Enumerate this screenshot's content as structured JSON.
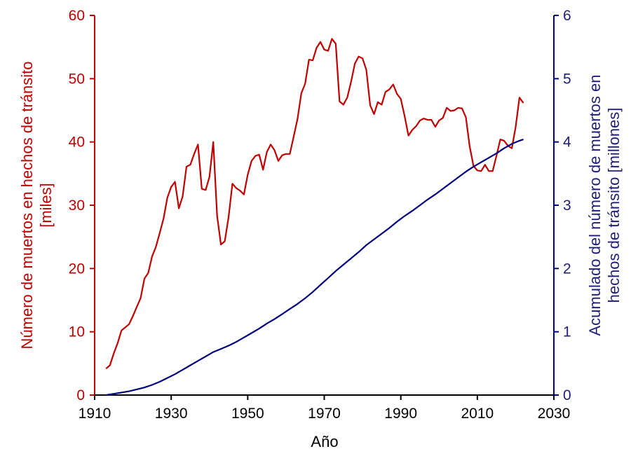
{
  "chart_data": {
    "type": "line",
    "title": "",
    "xlabel": "Año",
    "ylabel_left": [
      "Número de muertos en hechos de tránsito",
      "[miles]"
    ],
    "ylabel_right": [
      "Acumulado del número de muertos en",
      "hechos de tránsito [millones]"
    ],
    "xlim": [
      1910,
      2030
    ],
    "ylim_left": [
      0,
      60
    ],
    "ylim_right": [
      0,
      6
    ],
    "x_ticks": [
      1910,
      1930,
      1950,
      1970,
      1990,
      2010,
      2030
    ],
    "y_ticks_left": [
      0,
      10,
      20,
      30,
      40,
      50,
      60
    ],
    "y_ticks_right": [
      0,
      1,
      2,
      3,
      4,
      5,
      6
    ],
    "grid": false,
    "legend": "none",
    "colors": {
      "left": "#c00000",
      "right": "#00007f",
      "axis_text_left": "#c00000",
      "axis_text_right": "#1f1f7a"
    },
    "series": [
      {
        "axis": "left",
        "x": [
          1913,
          1914,
          1915,
          1916,
          1917,
          1918,
          1919,
          1920,
          1921,
          1922,
          1923,
          1924,
          1925,
          1926,
          1927,
          1928,
          1929,
          1930,
          1931,
          1932,
          1933,
          1934,
          1935,
          1936,
          1937,
          1938,
          1939,
          1940,
          1941,
          1942,
          1943,
          1944,
          1945,
          1946,
          1947,
          1948,
          1949,
          1950,
          1951,
          1952,
          1953,
          1954,
          1955,
          1956,
          1957,
          1958,
          1959,
          1960,
          1961,
          1962,
          1963,
          1964,
          1965,
          1966,
          1967,
          1968,
          1969,
          1970,
          1971,
          1972,
          1973,
          1974,
          1975,
          1976,
          1977,
          1978,
          1979,
          1980,
          1981,
          1982,
          1983,
          1984,
          1985,
          1986,
          1987,
          1988,
          1989,
          1990,
          1991,
          1992,
          1993,
          1994,
          1995,
          1996,
          1997,
          1998,
          1999,
          2000,
          2001,
          2002,
          2003,
          2004,
          2005,
          2006,
          2007,
          2008,
          2009,
          2010,
          2011,
          2012,
          2013,
          2014,
          2015,
          2016,
          2017,
          2018,
          2019,
          2020,
          2021,
          2022
        ],
        "y": [
          4.2,
          4.7,
          6.6,
          8.2,
          10.2,
          10.7,
          11.2,
          12.5,
          13.9,
          15.3,
          18.4,
          19.3,
          21.9,
          23.4,
          25.6,
          27.9,
          31.2,
          32.9,
          33.7,
          29.5,
          31.4,
          36.1,
          36.4,
          38.1,
          39.6,
          32.6,
          32.4,
          34.5,
          40.0,
          28.3,
          23.8,
          24.3,
          28.1,
          33.4,
          32.7,
          32.3,
          31.7,
          34.8,
          37.0,
          37.8,
          38.0,
          35.6,
          38.4,
          39.6,
          38.7,
          37.0,
          37.9,
          38.1,
          38.1,
          40.8,
          43.6,
          47.7,
          49.2,
          53.0,
          52.9,
          54.9,
          55.8,
          54.6,
          54.4,
          56.3,
          55.5,
          46.4,
          45.9,
          47.0,
          49.5,
          52.4,
          53.5,
          53.2,
          51.4,
          45.8,
          44.4,
          46.3,
          45.9,
          47.9,
          48.3,
          49.1,
          47.6,
          46.8,
          44.1,
          41.0,
          41.9,
          42.5,
          43.4,
          43.7,
          43.5,
          43.5,
          42.4,
          43.4,
          43.8,
          45.4,
          44.9,
          45.0,
          45.4,
          45.3,
          43.9,
          39.3,
          36.2,
          35.5,
          35.4,
          36.4,
          35.4,
          35.4,
          37.8,
          40.4,
          40.2,
          39.4,
          39.0,
          42.3,
          47.0,
          46.2
        ]
      },
      {
        "axis": "right",
        "x": [
          1913,
          1915,
          1917,
          1919,
          1921,
          1923,
          1925,
          1927,
          1929,
          1931,
          1933,
          1935,
          1937,
          1939,
          1941,
          1943,
          1945,
          1947,
          1949,
          1951,
          1953,
          1955,
          1957,
          1959,
          1961,
          1963,
          1965,
          1967,
          1969,
          1971,
          1973,
          1975,
          1977,
          1979,
          1981,
          1983,
          1985,
          1987,
          1989,
          1991,
          1993,
          1995,
          1997,
          1999,
          2001,
          2003,
          2005,
          2007,
          2009,
          2011,
          2013,
          2015,
          2017,
          2019,
          2021,
          2022
        ],
        "y": [
          0.0,
          0.02,
          0.04,
          0.06,
          0.09,
          0.12,
          0.16,
          0.21,
          0.27,
          0.33,
          0.4,
          0.47,
          0.54,
          0.61,
          0.68,
          0.73,
          0.78,
          0.84,
          0.91,
          0.98,
          1.05,
          1.13,
          1.2,
          1.28,
          1.36,
          1.44,
          1.53,
          1.63,
          1.74,
          1.85,
          1.96,
          2.06,
          2.16,
          2.26,
          2.37,
          2.46,
          2.55,
          2.64,
          2.74,
          2.83,
          2.91,
          3.0,
          3.09,
          3.17,
          3.26,
          3.35,
          3.44,
          3.53,
          3.61,
          3.68,
          3.75,
          3.82,
          3.9,
          3.97,
          4.02,
          4.04
        ]
      }
    ]
  }
}
